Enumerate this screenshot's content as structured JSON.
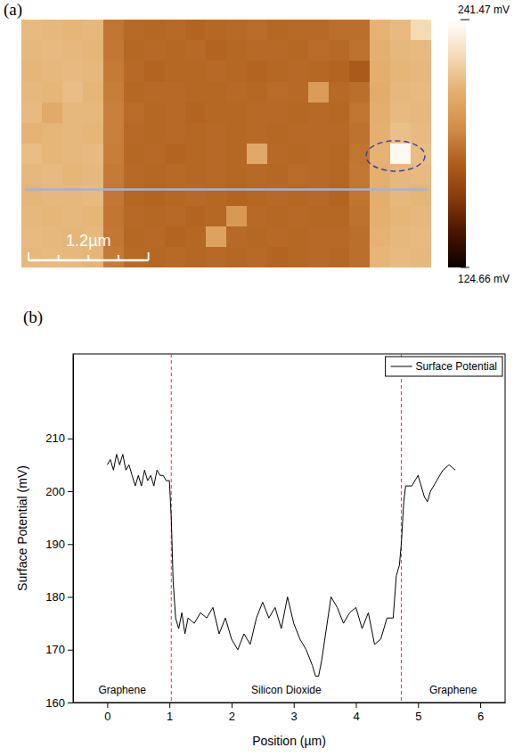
{
  "chart_data": [
    {
      "type": "heatmap",
      "panel": "(a)",
      "tick_labels": false,
      "xlim": [
        0,
        4.1
      ],
      "values": [
        [
          212,
          211,
          210,
          211,
          182,
          178,
          177,
          178,
          176,
          177,
          178,
          179,
          177,
          178,
          178,
          180,
          180,
          209,
          212,
          224
        ],
        [
          211,
          212,
          211,
          210,
          183,
          177,
          178,
          177,
          178,
          176,
          177,
          178,
          178,
          177,
          179,
          178,
          181,
          208,
          211,
          212
        ],
        [
          210,
          211,
          212,
          211,
          184,
          178,
          176,
          177,
          177,
          178,
          177,
          176,
          177,
          178,
          177,
          176,
          172,
          207,
          210,
          211
        ],
        [
          211,
          210,
          213,
          210,
          185,
          177,
          178,
          178,
          177,
          177,
          178,
          177,
          179,
          178,
          198,
          178,
          180,
          206,
          211,
          212
        ],
        [
          212,
          205,
          211,
          211,
          186,
          179,
          177,
          178,
          176,
          177,
          177,
          178,
          178,
          177,
          178,
          177,
          182,
          207,
          212,
          211
        ],
        [
          209,
          210,
          211,
          210,
          186,
          178,
          177,
          178,
          177,
          178,
          177,
          178,
          177,
          178,
          178,
          178,
          181,
          208,
          214,
          212
        ],
        [
          213,
          210,
          211,
          212,
          185,
          177,
          178,
          176,
          177,
          178,
          177,
          204,
          178,
          177,
          178,
          177,
          182,
          209,
          238,
          213
        ],
        [
          211,
          212,
          210,
          211,
          184,
          178,
          177,
          178,
          177,
          178,
          177,
          178,
          177,
          179,
          178,
          177,
          183,
          208,
          211,
          212
        ],
        [
          210,
          211,
          211,
          212,
          183,
          177,
          176,
          177,
          178,
          177,
          176,
          177,
          178,
          177,
          178,
          176,
          182,
          207,
          211,
          210
        ],
        [
          211,
          210,
          211,
          210,
          182,
          178,
          177,
          178,
          176,
          177,
          196,
          178,
          177,
          178,
          177,
          177,
          181,
          208,
          210,
          211
        ],
        [
          212,
          211,
          210,
          211,
          183,
          177,
          178,
          176,
          177,
          201,
          178,
          177,
          178,
          177,
          178,
          178,
          180,
          209,
          211,
          212
        ],
        [
          211,
          212,
          211,
          210,
          184,
          178,
          177,
          178,
          177,
          178,
          177,
          178,
          176,
          177,
          178,
          177,
          180,
          210,
          212,
          211
        ]
      ],
      "colorbar": {
        "range": [
          124.66,
          241.47
        ],
        "ticks": [
          {
            "value": 241.47,
            "label": "241.47 mV"
          },
          {
            "value": 124.66,
            "label": "124.66 mV"
          }
        ]
      },
      "scale_bar": {
        "value": 1.2,
        "label": "1.2µm"
      }
    },
    {
      "type": "line",
      "panel": "(b)",
      "xlabel": "Position (µm)",
      "ylabel": "Surface Potential (mV)",
      "xlim": [
        -0.55,
        6.4
      ],
      "ylim": [
        160,
        226
      ],
      "xticks": [
        0,
        1,
        2,
        3,
        4,
        5,
        6
      ],
      "yticks": [
        160,
        170,
        180,
        190,
        200,
        210
      ],
      "legend": "upper right",
      "region_boundaries": [
        1.03,
        4.73
      ],
      "region_labels": [
        "Graphene",
        "Silicon Dioxide",
        "Graphene"
      ],
      "x": [
        0,
        0.05,
        0.1,
        0.15,
        0.2,
        0.25,
        0.3,
        0.35,
        0.4,
        0.45,
        0.5,
        0.55,
        0.6,
        0.65,
        0.7,
        0.75,
        0.8,
        0.85,
        0.9,
        0.95,
        1.0,
        1.03,
        1.06,
        1.1,
        1.15,
        1.2,
        1.25,
        1.3,
        1.4,
        1.5,
        1.6,
        1.7,
        1.8,
        1.9,
        2.0,
        2.1,
        2.2,
        2.3,
        2.4,
        2.5,
        2.6,
        2.7,
        2.8,
        2.9,
        3.0,
        3.1,
        3.2,
        3.3,
        3.35,
        3.4,
        3.45,
        3.5,
        3.6,
        3.7,
        3.8,
        3.9,
        4.0,
        4.1,
        4.2,
        4.3,
        4.4,
        4.5,
        4.6,
        4.65,
        4.7,
        4.73,
        4.77,
        4.8,
        4.9,
        5.0,
        5.1,
        5.15,
        5.2,
        5.3,
        5.4,
        5.5,
        5.6
      ],
      "series": [
        {
          "name": "Surface Potential",
          "color": "#000000",
          "line_style": "solid",
          "values": [
            205,
            206,
            204,
            207,
            205,
            207,
            204,
            205,
            203,
            201,
            203,
            201,
            204,
            202,
            203,
            201,
            204,
            203,
            203,
            202,
            202,
            195,
            183,
            176,
            174,
            177,
            173,
            176,
            175,
            177,
            176,
            178,
            173,
            176,
            172,
            170,
            173,
            171,
            176,
            179,
            176,
            178,
            174,
            180,
            175,
            172,
            170,
            167,
            165,
            165,
            168,
            172,
            180,
            178,
            175,
            177,
            178,
            174,
            177,
            171,
            172,
            176,
            176,
            184,
            186,
            190,
            198,
            201,
            201,
            203,
            199,
            198,
            200,
            202,
            204,
            205,
            204
          ]
        }
      ]
    }
  ]
}
